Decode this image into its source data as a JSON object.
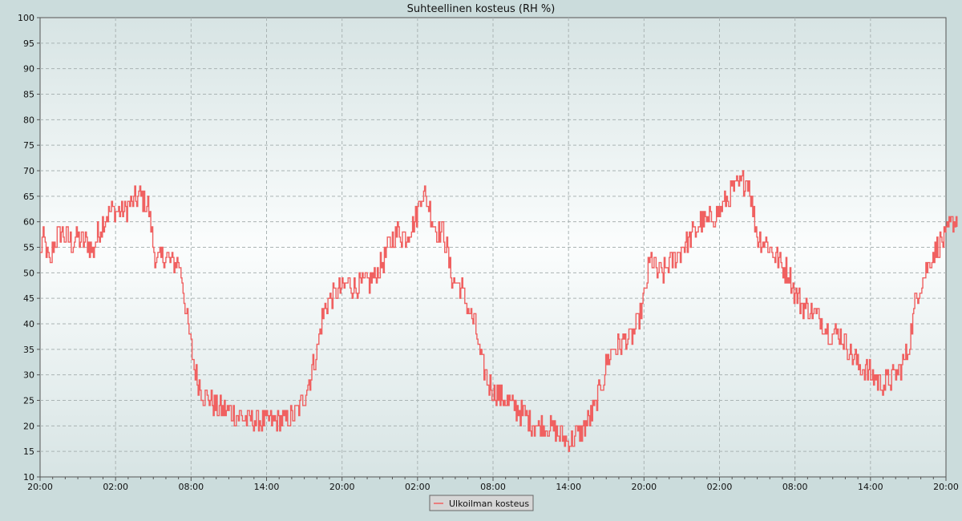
{
  "chart_data": {
    "type": "line",
    "title": "Suhteellinen kosteus (RH %)",
    "xlabel": "",
    "ylabel": "",
    "ylim": [
      10,
      100
    ],
    "yticks": [
      10,
      15,
      20,
      25,
      30,
      35,
      40,
      45,
      50,
      55,
      60,
      65,
      70,
      75,
      80,
      85,
      90,
      95,
      100
    ],
    "x_unit": "hours",
    "xlim": [
      0,
      72
    ],
    "xticks": [
      {
        "x": 0,
        "label": "20:00"
      },
      {
        "x": 6,
        "label": "02:00"
      },
      {
        "x": 12,
        "label": "08:00"
      },
      {
        "x": 18,
        "label": "14:00"
      },
      {
        "x": 24,
        "label": "20:00"
      },
      {
        "x": 30,
        "label": "02:00"
      },
      {
        "x": 36,
        "label": "08:00"
      },
      {
        "x": 42,
        "label": "14:00"
      },
      {
        "x": 48,
        "label": "20:00"
      },
      {
        "x": 54,
        "label": "02:00"
      },
      {
        "x": 60,
        "label": "08:00"
      },
      {
        "x": 66,
        "label": "14:00"
      },
      {
        "x": 72,
        "label": "20:00"
      }
    ],
    "grid": true,
    "legend_position": "bottom-center",
    "series": [
      {
        "name": "Ulkoilman kosteus",
        "color": "#f06060",
        "points": [
          [
            0,
            53
          ],
          [
            0.2,
            57
          ],
          [
            0.4,
            55
          ],
          [
            0.6,
            53
          ],
          [
            0.8,
            51
          ],
          [
            1.0,
            55
          ],
          [
            1.3,
            57
          ],
          [
            1.6,
            58
          ],
          [
            2.0,
            57
          ],
          [
            2.5,
            56
          ],
          [
            3.0,
            57
          ],
          [
            3.5,
            56
          ],
          [
            4.0,
            55
          ],
          [
            4.2,
            54
          ],
          [
            4.5,
            57
          ],
          [
            5.0,
            60
          ],
          [
            5.5,
            62
          ],
          [
            6.0,
            62
          ],
          [
            6.5,
            62
          ],
          [
            7.0,
            63
          ],
          [
            7.5,
            64
          ],
          [
            8.0,
            65
          ],
          [
            8.3,
            64
          ],
          [
            8.6,
            63
          ],
          [
            9.0,
            55
          ],
          [
            9.3,
            52
          ],
          [
            9.6,
            53
          ],
          [
            10.0,
            53
          ],
          [
            10.5,
            52
          ],
          [
            11.0,
            52
          ],
          [
            11.3,
            48
          ],
          [
            11.6,
            42
          ],
          [
            11.9,
            37
          ],
          [
            12.2,
            32
          ],
          [
            12.5,
            29
          ],
          [
            13.0,
            26
          ],
          [
            13.5,
            25
          ],
          [
            14.0,
            24
          ],
          [
            14.5,
            23
          ],
          [
            15.0,
            23
          ],
          [
            15.5,
            22
          ],
          [
            16.0,
            22
          ],
          [
            16.5,
            21
          ],
          [
            17.0,
            21
          ],
          [
            17.5,
            21
          ],
          [
            18.0,
            21
          ],
          [
            18.5,
            21
          ],
          [
            19.0,
            21
          ],
          [
            19.5,
            21
          ],
          [
            20.0,
            22
          ],
          [
            20.5,
            23
          ],
          [
            21.0,
            26
          ],
          [
            21.5,
            30
          ],
          [
            22.0,
            35
          ],
          [
            22.3,
            40
          ],
          [
            22.6,
            43
          ],
          [
            23.0,
            45
          ],
          [
            23.5,
            46
          ],
          [
            24.0,
            47
          ],
          [
            24.5,
            48
          ],
          [
            25.0,
            47
          ],
          [
            25.5,
            48
          ],
          [
            26.0,
            48
          ],
          [
            26.5,
            49
          ],
          [
            27.0,
            51
          ],
          [
            27.5,
            54
          ],
          [
            28.0,
            57
          ],
          [
            28.5,
            58
          ],
          [
            29.0,
            57
          ],
          [
            29.5,
            59
          ],
          [
            30.0,
            62
          ],
          [
            30.3,
            66
          ],
          [
            30.6,
            65
          ],
          [
            31.0,
            62
          ],
          [
            31.5,
            58
          ],
          [
            32.0,
            58
          ],
          [
            32.3,
            55
          ],
          [
            32.6,
            50
          ],
          [
            33.0,
            48
          ],
          [
            33.5,
            47
          ],
          [
            34.0,
            43
          ],
          [
            34.5,
            40
          ],
          [
            34.8,
            36
          ],
          [
            35.0,
            33
          ],
          [
            35.5,
            29
          ],
          [
            36.0,
            27
          ],
          [
            36.5,
            26
          ],
          [
            37.0,
            25
          ],
          [
            37.5,
            24
          ],
          [
            38.0,
            23
          ],
          [
            38.5,
            22
          ],
          [
            39.0,
            21
          ],
          [
            39.5,
            20
          ],
          [
            40.0,
            20
          ],
          [
            40.5,
            20
          ],
          [
            41.0,
            19
          ],
          [
            41.5,
            18
          ],
          [
            42.0,
            17
          ],
          [
            42.5,
            18
          ],
          [
            43.0,
            19
          ],
          [
            43.5,
            21
          ],
          [
            44.0,
            23
          ],
          [
            44.5,
            27
          ],
          [
            45.0,
            32
          ],
          [
            45.5,
            35
          ],
          [
            46.0,
            36
          ],
          [
            46.5,
            37
          ],
          [
            47.0,
            37
          ],
          [
            47.5,
            40
          ],
          [
            48.0,
            45
          ],
          [
            48.3,
            50
          ],
          [
            48.6,
            53
          ],
          [
            49.0,
            50
          ],
          [
            49.5,
            50
          ],
          [
            50.0,
            52
          ],
          [
            50.5,
            53
          ],
          [
            51.0,
            55
          ],
          [
            51.5,
            56
          ],
          [
            52.0,
            58
          ],
          [
            52.5,
            60
          ],
          [
            53.0,
            60
          ],
          [
            53.5,
            61
          ],
          [
            54.0,
            62
          ],
          [
            54.5,
            64
          ],
          [
            55.0,
            66
          ],
          [
            55.5,
            67
          ],
          [
            56.0,
            68
          ],
          [
            56.3,
            68
          ],
          [
            56.6,
            63
          ],
          [
            57.0,
            57
          ],
          [
            57.5,
            56
          ],
          [
            58.0,
            55
          ],
          [
            58.5,
            53
          ],
          [
            59.0,
            51
          ],
          [
            59.5,
            50
          ],
          [
            60.0,
            46
          ],
          [
            60.5,
            44
          ],
          [
            61.0,
            43
          ],
          [
            61.5,
            42
          ],
          [
            62.0,
            41
          ],
          [
            62.5,
            39
          ],
          [
            63.0,
            38
          ],
          [
            63.5,
            38
          ],
          [
            64.0,
            36
          ],
          [
            64.5,
            34
          ],
          [
            65.0,
            32
          ],
          [
            65.5,
            31
          ],
          [
            66.0,
            30
          ],
          [
            66.5,
            29
          ],
          [
            67.0,
            28
          ],
          [
            67.5,
            29
          ],
          [
            68.0,
            30
          ],
          [
            68.5,
            32
          ],
          [
            69.0,
            35
          ],
          [
            69.3,
            40
          ],
          [
            69.6,
            45
          ],
          [
            70.0,
            48
          ],
          [
            70.5,
            51
          ],
          [
            71.0,
            54
          ],
          [
            71.5,
            56
          ],
          [
            72.0,
            57
          ],
          [
            72.3,
            59
          ],
          [
            72.6,
            60
          ],
          [
            72.9,
            61
          ]
        ]
      }
    ]
  }
}
